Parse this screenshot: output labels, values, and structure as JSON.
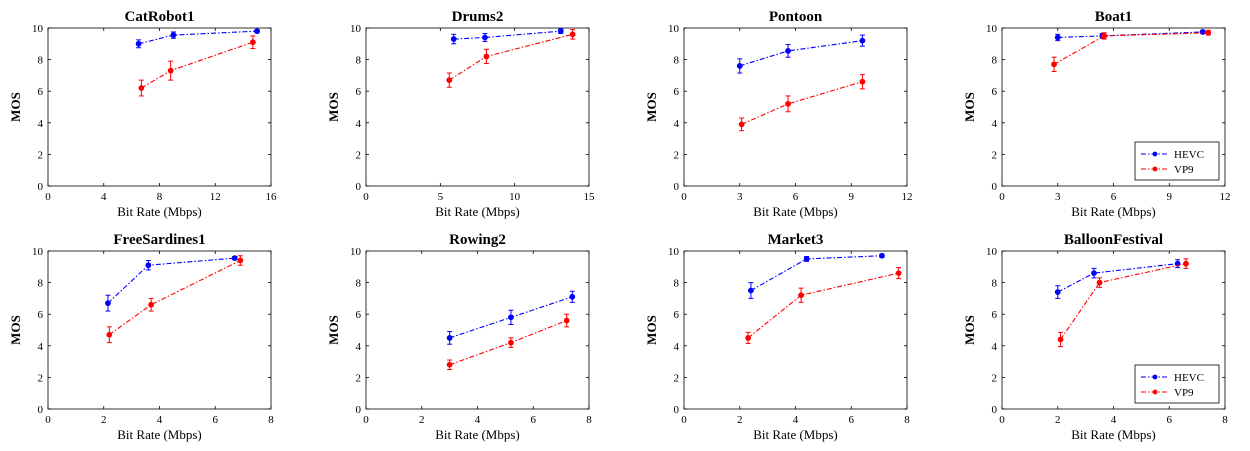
{
  "colors": {
    "hevc": "#0000FF",
    "vp9": "#FF0000",
    "axis": "#000000"
  },
  "legend": {
    "hevc_label": "HEVC",
    "vp9_label": "VP9"
  },
  "chart_data": [
    {
      "type": "line",
      "title": "CatRobot1",
      "xlabel": "Bit Rate (Mbps)",
      "ylabel": "MOS",
      "xlim": [
        0,
        16
      ],
      "ylim": [
        0,
        10
      ],
      "xticks": [
        "0",
        "4",
        "8",
        "12",
        "16"
      ],
      "yticks": [
        "0",
        "2",
        "4",
        "6",
        "8",
        "10"
      ],
      "legend": false,
      "series": [
        {
          "name": "HEVC",
          "x": [
            6.5,
            9.0,
            15.0
          ],
          "y": [
            9.0,
            9.55,
            9.8
          ],
          "err": [
            0.25,
            0.2,
            0.1
          ]
        },
        {
          "name": "VP9",
          "x": [
            6.7,
            8.8,
            14.7
          ],
          "y": [
            6.2,
            7.3,
            9.1
          ],
          "err": [
            0.5,
            0.6,
            0.4
          ]
        }
      ]
    },
    {
      "type": "line",
      "title": "Drums2",
      "xlabel": "Bit Rate (Mbps)",
      "ylabel": "MOS",
      "xlim": [
        0,
        15
      ],
      "ylim": [
        0,
        10
      ],
      "xticks": [
        "0",
        "5",
        "10",
        "15"
      ],
      "yticks": [
        "0",
        "2",
        "4",
        "6",
        "8",
        "10"
      ],
      "legend": false,
      "series": [
        {
          "name": "HEVC",
          "x": [
            5.9,
            8.0,
            13.1
          ],
          "y": [
            9.3,
            9.4,
            9.8
          ],
          "err": [
            0.3,
            0.25,
            0.15
          ]
        },
        {
          "name": "VP9",
          "x": [
            5.6,
            8.1,
            13.9
          ],
          "y": [
            6.7,
            8.2,
            9.6
          ],
          "err": [
            0.45,
            0.45,
            0.3
          ]
        }
      ]
    },
    {
      "type": "line",
      "title": "Pontoon",
      "xlabel": "Bit Rate (Mbps)",
      "ylabel": "MOS",
      "xlim": [
        0,
        12
      ],
      "ylim": [
        0,
        10
      ],
      "xticks": [
        "0",
        "3",
        "6",
        "9",
        "12"
      ],
      "yticks": [
        "0",
        "2",
        "4",
        "6",
        "8",
        "10"
      ],
      "legend": false,
      "series": [
        {
          "name": "HEVC",
          "x": [
            3.0,
            5.6,
            9.6
          ],
          "y": [
            7.6,
            8.55,
            9.2
          ],
          "err": [
            0.45,
            0.4,
            0.35
          ]
        },
        {
          "name": "VP9",
          "x": [
            3.1,
            5.6,
            9.6
          ],
          "y": [
            3.9,
            5.2,
            6.6
          ],
          "err": [
            0.4,
            0.5,
            0.45
          ]
        }
      ]
    },
    {
      "type": "line",
      "title": "Boat1",
      "xlabel": "Bit Rate (Mbps)",
      "ylabel": "MOS",
      "xlim": [
        0,
        12
      ],
      "ylim": [
        0,
        10
      ],
      "xticks": [
        "0",
        "3",
        "6",
        "9",
        "12"
      ],
      "yticks": [
        "0",
        "2",
        "4",
        "6",
        "8",
        "10"
      ],
      "legend": true,
      "series": [
        {
          "name": "HEVC",
          "x": [
            3.0,
            5.4,
            10.8
          ],
          "y": [
            9.4,
            9.5,
            9.75
          ],
          "err": [
            0.2,
            0.15,
            0.1
          ]
        },
        {
          "name": "VP9",
          "x": [
            2.8,
            5.5,
            11.1
          ],
          "y": [
            7.7,
            9.5,
            9.7
          ],
          "err": [
            0.45,
            0.2,
            0.15
          ]
        }
      ]
    },
    {
      "type": "line",
      "title": "FreeSardines1",
      "xlabel": "Bit Rate (Mbps)",
      "ylabel": "MOS",
      "xlim": [
        0,
        8
      ],
      "ylim": [
        0,
        10
      ],
      "xticks": [
        "0",
        "2",
        "4",
        "6",
        "8"
      ],
      "yticks": [
        "0",
        "2",
        "4",
        "6",
        "8",
        "10"
      ],
      "legend": false,
      "series": [
        {
          "name": "HEVC",
          "x": [
            2.15,
            3.6,
            6.7
          ],
          "y": [
            6.7,
            9.1,
            9.55
          ],
          "err": [
            0.5,
            0.3,
            0.1
          ]
        },
        {
          "name": "VP9",
          "x": [
            2.2,
            3.7,
            6.9
          ],
          "y": [
            4.7,
            6.6,
            9.4
          ],
          "err": [
            0.5,
            0.4,
            0.3
          ]
        }
      ]
    },
    {
      "type": "line",
      "title": "Rowing2",
      "xlabel": "Bit Rate (Mbps)",
      "ylabel": "MOS",
      "xlim": [
        0,
        8
      ],
      "ylim": [
        0,
        10
      ],
      "xticks": [
        "0",
        "2",
        "4",
        "6",
        "8"
      ],
      "yticks": [
        "0",
        "2",
        "4",
        "6",
        "8",
        "10"
      ],
      "legend": false,
      "series": [
        {
          "name": "HEVC",
          "x": [
            3.0,
            5.2,
            7.4
          ],
          "y": [
            4.5,
            5.8,
            7.1
          ],
          "err": [
            0.4,
            0.45,
            0.35
          ]
        },
        {
          "name": "VP9",
          "x": [
            3.0,
            5.2,
            7.2
          ],
          "y": [
            2.8,
            4.2,
            5.6
          ],
          "err": [
            0.3,
            0.3,
            0.4
          ]
        }
      ]
    },
    {
      "type": "line",
      "title": "Market3",
      "xlabel": "Bit Rate (Mbps)",
      "ylabel": "MOS",
      "xlim": [
        0,
        8
      ],
      "ylim": [
        0,
        10
      ],
      "xticks": [
        "0",
        "2",
        "4",
        "6",
        "8"
      ],
      "yticks": [
        "0",
        "2",
        "4",
        "6",
        "8",
        "10"
      ],
      "legend": false,
      "series": [
        {
          "name": "HEVC",
          "x": [
            2.4,
            4.4,
            7.1
          ],
          "y": [
            7.5,
            9.5,
            9.7
          ],
          "err": [
            0.5,
            0.15,
            0.1
          ]
        },
        {
          "name": "VP9",
          "x": [
            2.3,
            4.2,
            7.7
          ],
          "y": [
            4.5,
            7.2,
            8.6
          ],
          "err": [
            0.35,
            0.45,
            0.35
          ]
        }
      ]
    },
    {
      "type": "line",
      "title": "BalloonFestival",
      "xlabel": "Bit Rate (Mbps)",
      "ylabel": "MOS",
      "xlim": [
        0,
        8
      ],
      "ylim": [
        0,
        10
      ],
      "xticks": [
        "0",
        "2",
        "4",
        "6",
        "8"
      ],
      "yticks": [
        "0",
        "2",
        "4",
        "6",
        "8",
        "10"
      ],
      "legend": true,
      "series": [
        {
          "name": "HEVC",
          "x": [
            2.0,
            3.3,
            6.3
          ],
          "y": [
            7.4,
            8.6,
            9.2
          ],
          "err": [
            0.4,
            0.3,
            0.25
          ]
        },
        {
          "name": "VP9",
          "x": [
            2.1,
            3.5,
            6.6
          ],
          "y": [
            4.4,
            8.0,
            9.2
          ],
          "err": [
            0.45,
            0.3,
            0.3
          ]
        }
      ]
    }
  ]
}
